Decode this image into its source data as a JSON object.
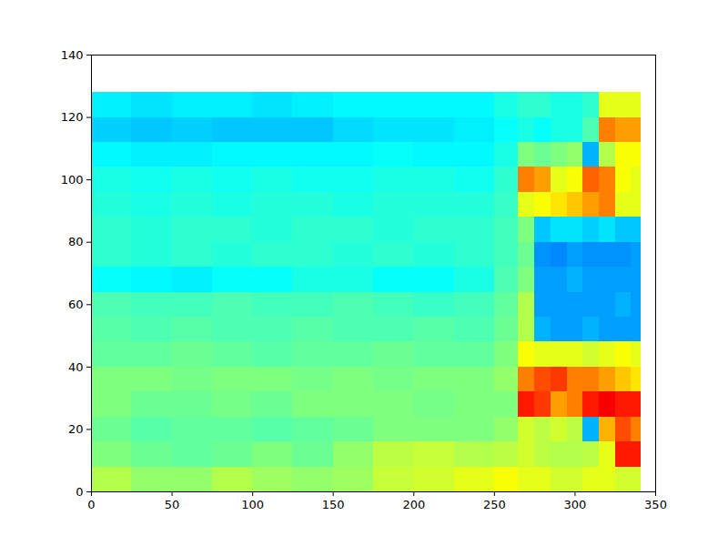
{
  "chart_data": {
    "type": "heatmap",
    "xlim": [
      0,
      350
    ],
    "xticks": [
      0,
      50,
      100,
      150,
      200,
      250,
      300,
      350
    ],
    "ylim": [
      0,
      140
    ],
    "yticks": [
      0,
      20,
      40,
      60,
      80,
      100,
      120,
      140
    ],
    "zlim": [
      0,
      1
    ],
    "x_edges": [
      0,
      25,
      50,
      75,
      100,
      125,
      150,
      175,
      200,
      225,
      250,
      265,
      275,
      285,
      295,
      305,
      315,
      325,
      335,
      341
    ],
    "y_edges": [
      0,
      8,
      16,
      24,
      32,
      40,
      48,
      56,
      64,
      72,
      80,
      88,
      96,
      104,
      112,
      120,
      128
    ],
    "z": [
      [
        0.55,
        0.52,
        0.52,
        0.55,
        0.53,
        0.52,
        0.53,
        0.57,
        0.58,
        0.6,
        0.62,
        0.6,
        0.6,
        0.58,
        0.58,
        0.6,
        0.6,
        0.58,
        0.58
      ],
      [
        0.5,
        0.48,
        0.47,
        0.48,
        0.5,
        0.48,
        0.52,
        0.56,
        0.57,
        0.55,
        0.56,
        0.58,
        0.56,
        0.55,
        0.55,
        0.56,
        0.6,
        0.85,
        0.85
      ],
      [
        0.48,
        0.46,
        0.47,
        0.47,
        0.46,
        0.47,
        0.48,
        0.5,
        0.5,
        0.5,
        0.52,
        0.58,
        0.56,
        0.58,
        0.56,
        0.3,
        0.7,
        0.8,
        0.75
      ],
      [
        0.5,
        0.48,
        0.48,
        0.49,
        0.48,
        0.5,
        0.5,
        0.5,
        0.49,
        0.5,
        0.5,
        0.85,
        0.82,
        0.72,
        0.75,
        0.85,
        0.88,
        0.85,
        0.85
      ],
      [
        0.5,
        0.5,
        0.49,
        0.5,
        0.5,
        0.49,
        0.5,
        0.49,
        0.5,
        0.5,
        0.52,
        0.75,
        0.8,
        0.82,
        0.75,
        0.75,
        0.72,
        0.68,
        0.65
      ],
      [
        0.47,
        0.47,
        0.48,
        0.47,
        0.46,
        0.47,
        0.47,
        0.48,
        0.47,
        0.47,
        0.5,
        0.62,
        0.6,
        0.6,
        0.6,
        0.58,
        0.6,
        0.62,
        0.6
      ],
      [
        0.46,
        0.45,
        0.46,
        0.45,
        0.45,
        0.46,
        0.45,
        0.45,
        0.46,
        0.45,
        0.48,
        0.55,
        0.3,
        0.28,
        0.28,
        0.3,
        0.28,
        0.28,
        0.28
      ],
      [
        0.45,
        0.44,
        0.44,
        0.45,
        0.44,
        0.44,
        0.45,
        0.44,
        0.43,
        0.44,
        0.47,
        0.55,
        0.28,
        0.28,
        0.28,
        0.28,
        0.28,
        0.3,
        0.28
      ],
      [
        0.38,
        0.37,
        0.36,
        0.38,
        0.38,
        0.4,
        0.4,
        0.38,
        0.38,
        0.4,
        0.45,
        0.5,
        0.28,
        0.28,
        0.3,
        0.28,
        0.28,
        0.28,
        0.28
      ],
      [
        0.42,
        0.41,
        0.42,
        0.41,
        0.42,
        0.42,
        0.41,
        0.42,
        0.41,
        0.42,
        0.44,
        0.48,
        0.27,
        0.26,
        0.28,
        0.27,
        0.27,
        0.27,
        0.28
      ],
      [
        0.42,
        0.41,
        0.42,
        0.42,
        0.41,
        0.42,
        0.42,
        0.41,
        0.42,
        0.42,
        0.44,
        0.5,
        0.32,
        0.35,
        0.35,
        0.33,
        0.35,
        0.32,
        0.32
      ],
      [
        0.41,
        0.4,
        0.41,
        0.4,
        0.41,
        0.41,
        0.4,
        0.41,
        0.41,
        0.41,
        0.43,
        0.6,
        0.62,
        0.65,
        0.68,
        0.72,
        0.75,
        0.6,
        0.6
      ],
      [
        0.4,
        0.39,
        0.4,
        0.39,
        0.4,
        0.39,
        0.39,
        0.4,
        0.4,
        0.39,
        0.42,
        0.75,
        0.72,
        0.6,
        0.62,
        0.78,
        0.75,
        0.62,
        0.6
      ],
      [
        0.37,
        0.36,
        0.36,
        0.37,
        0.37,
        0.37,
        0.37,
        0.38,
        0.37,
        0.37,
        0.4,
        0.5,
        0.48,
        0.5,
        0.52,
        0.3,
        0.55,
        0.62,
        0.62
      ],
      [
        0.33,
        0.32,
        0.33,
        0.32,
        0.32,
        0.32,
        0.34,
        0.35,
        0.35,
        0.36,
        0.38,
        0.4,
        0.38,
        0.4,
        0.4,
        0.45,
        0.75,
        0.72,
        0.72
      ],
      [
        0.36,
        0.35,
        0.36,
        0.36,
        0.35,
        0.36,
        0.37,
        0.37,
        0.37,
        0.37,
        0.4,
        0.42,
        0.42,
        0.4,
        0.4,
        0.42,
        0.6,
        0.6,
        0.6
      ]
    ]
  }
}
